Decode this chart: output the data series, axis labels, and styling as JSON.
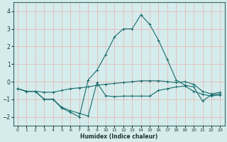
{
  "xlabel": "Humidex (Indice chaleur)",
  "xlim": [
    -0.5,
    23.5
  ],
  "ylim": [
    -2.5,
    4.5
  ],
  "yticks": [
    -2,
    -1,
    0,
    1,
    2,
    3,
    4
  ],
  "xticks": [
    0,
    1,
    2,
    3,
    4,
    5,
    6,
    7,
    8,
    9,
    10,
    11,
    12,
    13,
    14,
    15,
    16,
    17,
    18,
    19,
    20,
    21,
    22,
    23
  ],
  "bg_color": "#d5ecec",
  "grid_color": "#e8b0b0",
  "line_color": "#1a6b6b",
  "line1_x": [
    0,
    1,
    2,
    3,
    4,
    5,
    6,
    7,
    8,
    9,
    10,
    11,
    12,
    13,
    14,
    15,
    16,
    17,
    18,
    19,
    20,
    21,
    22,
    23
  ],
  "line1_y": [
    -0.4,
    -0.55,
    -0.55,
    -1.0,
    -1.0,
    -1.45,
    -1.65,
    -1.8,
    -1.95,
    -0.05,
    -0.8,
    -0.85,
    -0.82,
    -0.82,
    -0.82,
    -0.82,
    -0.5,
    -0.4,
    -0.3,
    -0.25,
    -0.55,
    -0.72,
    -0.82,
    -0.75
  ],
  "line2_x": [
    0,
    1,
    2,
    3,
    4,
    5,
    6,
    7,
    8,
    9,
    10,
    11,
    12,
    13,
    14,
    15,
    16,
    17,
    18,
    19,
    20,
    21,
    22,
    23
  ],
  "line2_y": [
    -0.4,
    -0.55,
    -0.55,
    -1.0,
    -1.0,
    -1.5,
    -1.75,
    -2.0,
    0.1,
    0.65,
    1.55,
    2.55,
    3.0,
    3.0,
    3.8,
    3.25,
    2.35,
    1.25,
    0.1,
    -0.2,
    -0.3,
    -1.1,
    -0.75,
    -0.7
  ],
  "line3_x": [
    0,
    1,
    2,
    3,
    4,
    5,
    6,
    7,
    8,
    9,
    10,
    11,
    12,
    13,
    14,
    15,
    16,
    17,
    18,
    19,
    20,
    21,
    22,
    23
  ],
  "line3_y": [
    -0.4,
    -0.55,
    -0.55,
    -0.6,
    -0.6,
    -0.5,
    -0.4,
    -0.35,
    -0.3,
    -0.2,
    -0.15,
    -0.1,
    -0.05,
    0.0,
    0.05,
    0.05,
    0.05,
    0.0,
    -0.05,
    0.0,
    -0.15,
    -0.55,
    -0.7,
    -0.6
  ]
}
